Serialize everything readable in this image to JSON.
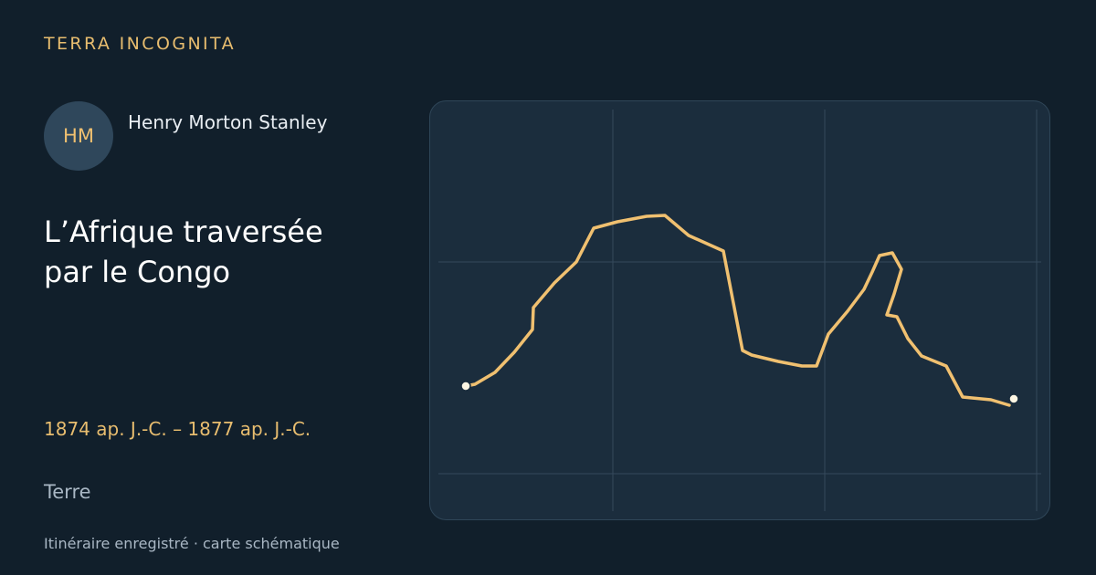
{
  "brand": "TERRA INCOGNITA",
  "explorer": {
    "initials": "HM",
    "name": "Henry Morton Stanley"
  },
  "title": "L’Afrique traversée par le Congo",
  "dates": "1874 ap. J.-C. – 1877 ap. J.-C.",
  "medium": "Terre",
  "footer": "Itinéraire enregistré · carte schématique"
}
